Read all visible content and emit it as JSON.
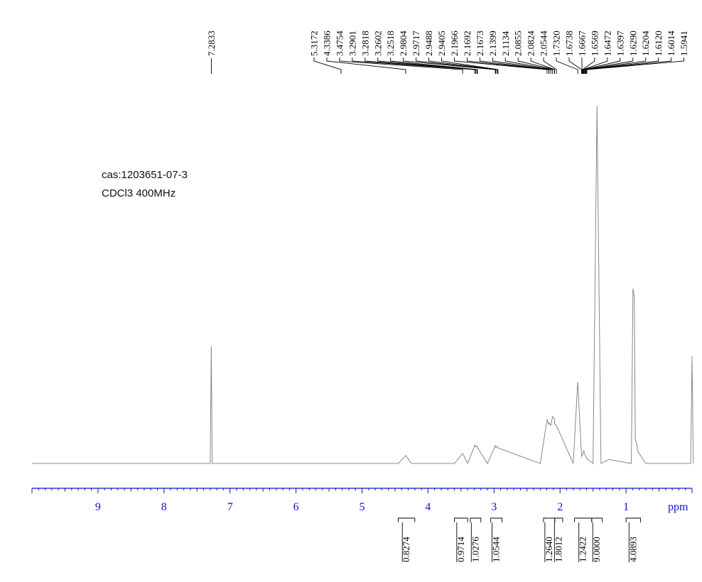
{
  "annotations": [
    "cas:1203651-07-3",
    "CDCl3 400MHz"
  ],
  "chart_data": {
    "type": "line",
    "title": "",
    "xlabel": "ppm",
    "xlim": [
      10,
      0
    ],
    "x_reversed": true,
    "x_ticks": [
      9,
      8,
      7,
      6,
      5,
      4,
      3,
      2,
      1
    ],
    "axis_color": "#1010c8",
    "trace_color": "#888888",
    "series": [
      {
        "x": [
          10,
          7.4,
          7.3,
          7.2833,
          7.27,
          7.15,
          4.45,
          4.3386,
          4.25,
          3.6,
          3.4754,
          3.4,
          3.2901,
          3.2818,
          3.2602,
          3.2518,
          3.1,
          2.9804,
          2.9717,
          2.9488,
          2.9405,
          2.3,
          2.1966,
          2.1692,
          2.1673,
          2.1399,
          2.1134,
          2.0855,
          2.0824,
          2.0544,
          1.8,
          1.732,
          1.6738,
          1.6667,
          1.6569,
          1.6472,
          1.6397,
          1.629,
          1.6204,
          1.612,
          1.6014,
          1.5941,
          1.5,
          1.44,
          1.38,
          1.26,
          0.92,
          0.895,
          0.875,
          0.86,
          0.84,
          0.82,
          0.7,
          0.02,
          0.0,
          -0.02
        ],
        "y": [
          0,
          0,
          0,
          0.295,
          0,
          0,
          0,
          0.02,
          0,
          0,
          0.025,
          0,
          0.046,
          0.042,
          0.044,
          0.04,
          0,
          0.045,
          0.04,
          0.043,
          0.039,
          0,
          0.11,
          0.098,
          0.102,
          0.096,
          0.118,
          0.112,
          0.1,
          0.095,
          0,
          0.205,
          0.018,
          0.02,
          0.022,
          0.03,
          0.032,
          0.025,
          0.021,
          0.018,
          0.015,
          0.012,
          0,
          0.9,
          0,
          0.01,
          0,
          0.44,
          0.42,
          0.06,
          0.05,
          0.03,
          0,
          0,
          0.27,
          0
        ]
      }
    ],
    "peak_labels": [
      "5.3172",
      "4.3386",
      "3.4754",
      "3.2901",
      "3.2818",
      "3.2602",
      "3.2518",
      "2.9804",
      "2.9717",
      "2.9488",
      "2.9405",
      "2.1966",
      "2.1692",
      "2.1673",
      "2.1399",
      "2.1134",
      "2.0855",
      "2.0824",
      "2.0544",
      "1.7320",
      "1.6738",
      "1.6667",
      "1.6569",
      "1.6472",
      "1.6397",
      "1.6290",
      "1.6204",
      "1.6120",
      "1.6014",
      "1.5941"
    ],
    "peak_label_targets": [
      5.3172,
      4.3386,
      3.4754,
      3.2901,
      3.2818,
      3.2602,
      3.2518,
      2.9804,
      2.9717,
      2.9488,
      2.9405,
      2.1966,
      2.1692,
      2.1673,
      2.1399,
      2.1134,
      2.0855,
      2.0824,
      2.0544,
      1.732,
      1.6738,
      1.6667,
      1.6569,
      1.6472,
      1.6397,
      1.629,
      1.6204,
      1.612,
      1.6014,
      1.5941
    ],
    "solvent_peak": {
      "label": "7.2833",
      "x": 7.2833
    },
    "integrals": [
      {
        "label": "0.8274",
        "from": 4.45,
        "to": 4.2
      },
      {
        "label": "0.9714",
        "from": 3.6,
        "to": 3.4
      },
      {
        "label": "1.0276",
        "from": 3.36,
        "to": 3.2
      },
      {
        "label": "1.0544",
        "from": 3.05,
        "to": 2.88
      },
      {
        "label": "1.2640",
        "from": 2.25,
        "to": 2.08
      },
      {
        "label": "1.8012",
        "from": 2.08,
        "to": 1.96
      },
      {
        "label": "1.2422",
        "from": 1.78,
        "to": 1.52
      },
      {
        "label": "9.0000",
        "from": 1.52,
        "to": 1.36
      },
      {
        "label": "4.0893",
        "from": 1.0,
        "to": 0.78
      }
    ]
  }
}
